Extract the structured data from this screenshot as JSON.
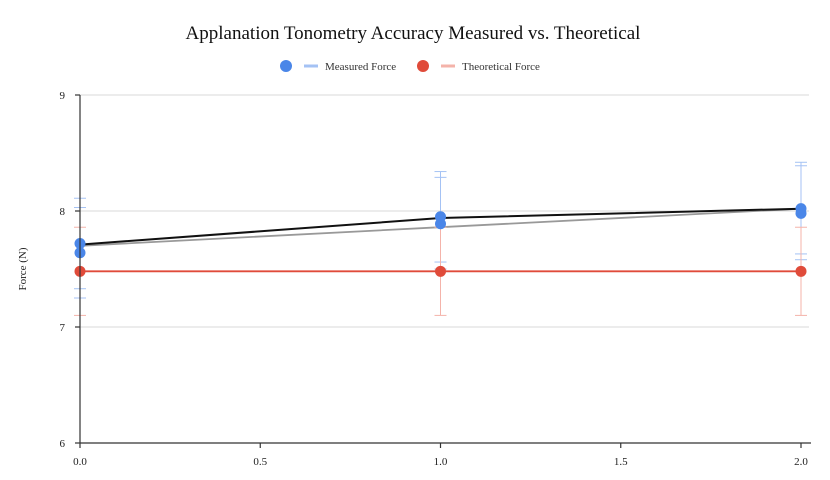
{
  "chart_data": {
    "type": "scatter",
    "title": "Applanation Tonometry Accuracy Measured vs. Theoretical",
    "xlabel": "",
    "ylabel": "Force (N)",
    "xlim": [
      0,
      2
    ],
    "ylim": [
      6,
      9
    ],
    "x_ticks": [
      "0.0",
      "0.5",
      "1.0",
      "1.5",
      "2.0"
    ],
    "y_ticks": [
      "6",
      "7",
      "8",
      "9"
    ],
    "grid": true,
    "legend": "top-center",
    "series": [
      {
        "name": "Measured Force",
        "color": "#4a86e8",
        "error_color": "#a4c2f4",
        "points": [
          {
            "x": 0,
            "y": 7.72,
            "err_low": 7.33,
            "err_high": 8.11
          },
          {
            "x": 0,
            "y": 7.64,
            "err_low": 7.25,
            "err_high": 8.03
          },
          {
            "x": 1,
            "y": 7.95,
            "err_low": 7.56,
            "err_high": 8.34
          },
          {
            "x": 1,
            "y": 7.89,
            "err_low": 7.5,
            "err_high": 8.29
          },
          {
            "x": 2,
            "y": 8.02,
            "err_low": 7.63,
            "err_high": 8.42
          },
          {
            "x": 2,
            "y": 7.98,
            "err_low": 7.58,
            "err_high": 8.39
          }
        ]
      },
      {
        "name": "Theoretical Force",
        "color": "#e04b3a",
        "error_color": "#f4b3aa",
        "points": [
          {
            "x": 0,
            "y": 7.48,
            "err_low": 7.1,
            "err_high": 7.86
          },
          {
            "x": 1,
            "y": 7.48,
            "err_low": 7.1,
            "err_high": 7.86
          },
          {
            "x": 2,
            "y": 7.48,
            "err_low": 7.1,
            "err_high": 7.86
          }
        ]
      }
    ],
    "lines": [
      {
        "color": "#111111",
        "points": [
          {
            "x": 0,
            "y": 7.71
          },
          {
            "x": 1,
            "y": 7.94
          },
          {
            "x": 2,
            "y": 8.02
          }
        ]
      },
      {
        "color": "#999999",
        "points": [
          {
            "x": 0,
            "y": 7.7
          },
          {
            "x": 1,
            "y": 7.86
          },
          {
            "x": 2,
            "y": 8.02
          }
        ]
      },
      {
        "color": "#e04b3a",
        "points": [
          {
            "x": 0,
            "y": 7.48
          },
          {
            "x": 1,
            "y": 7.48
          },
          {
            "x": 2,
            "y": 7.48
          }
        ]
      }
    ]
  }
}
